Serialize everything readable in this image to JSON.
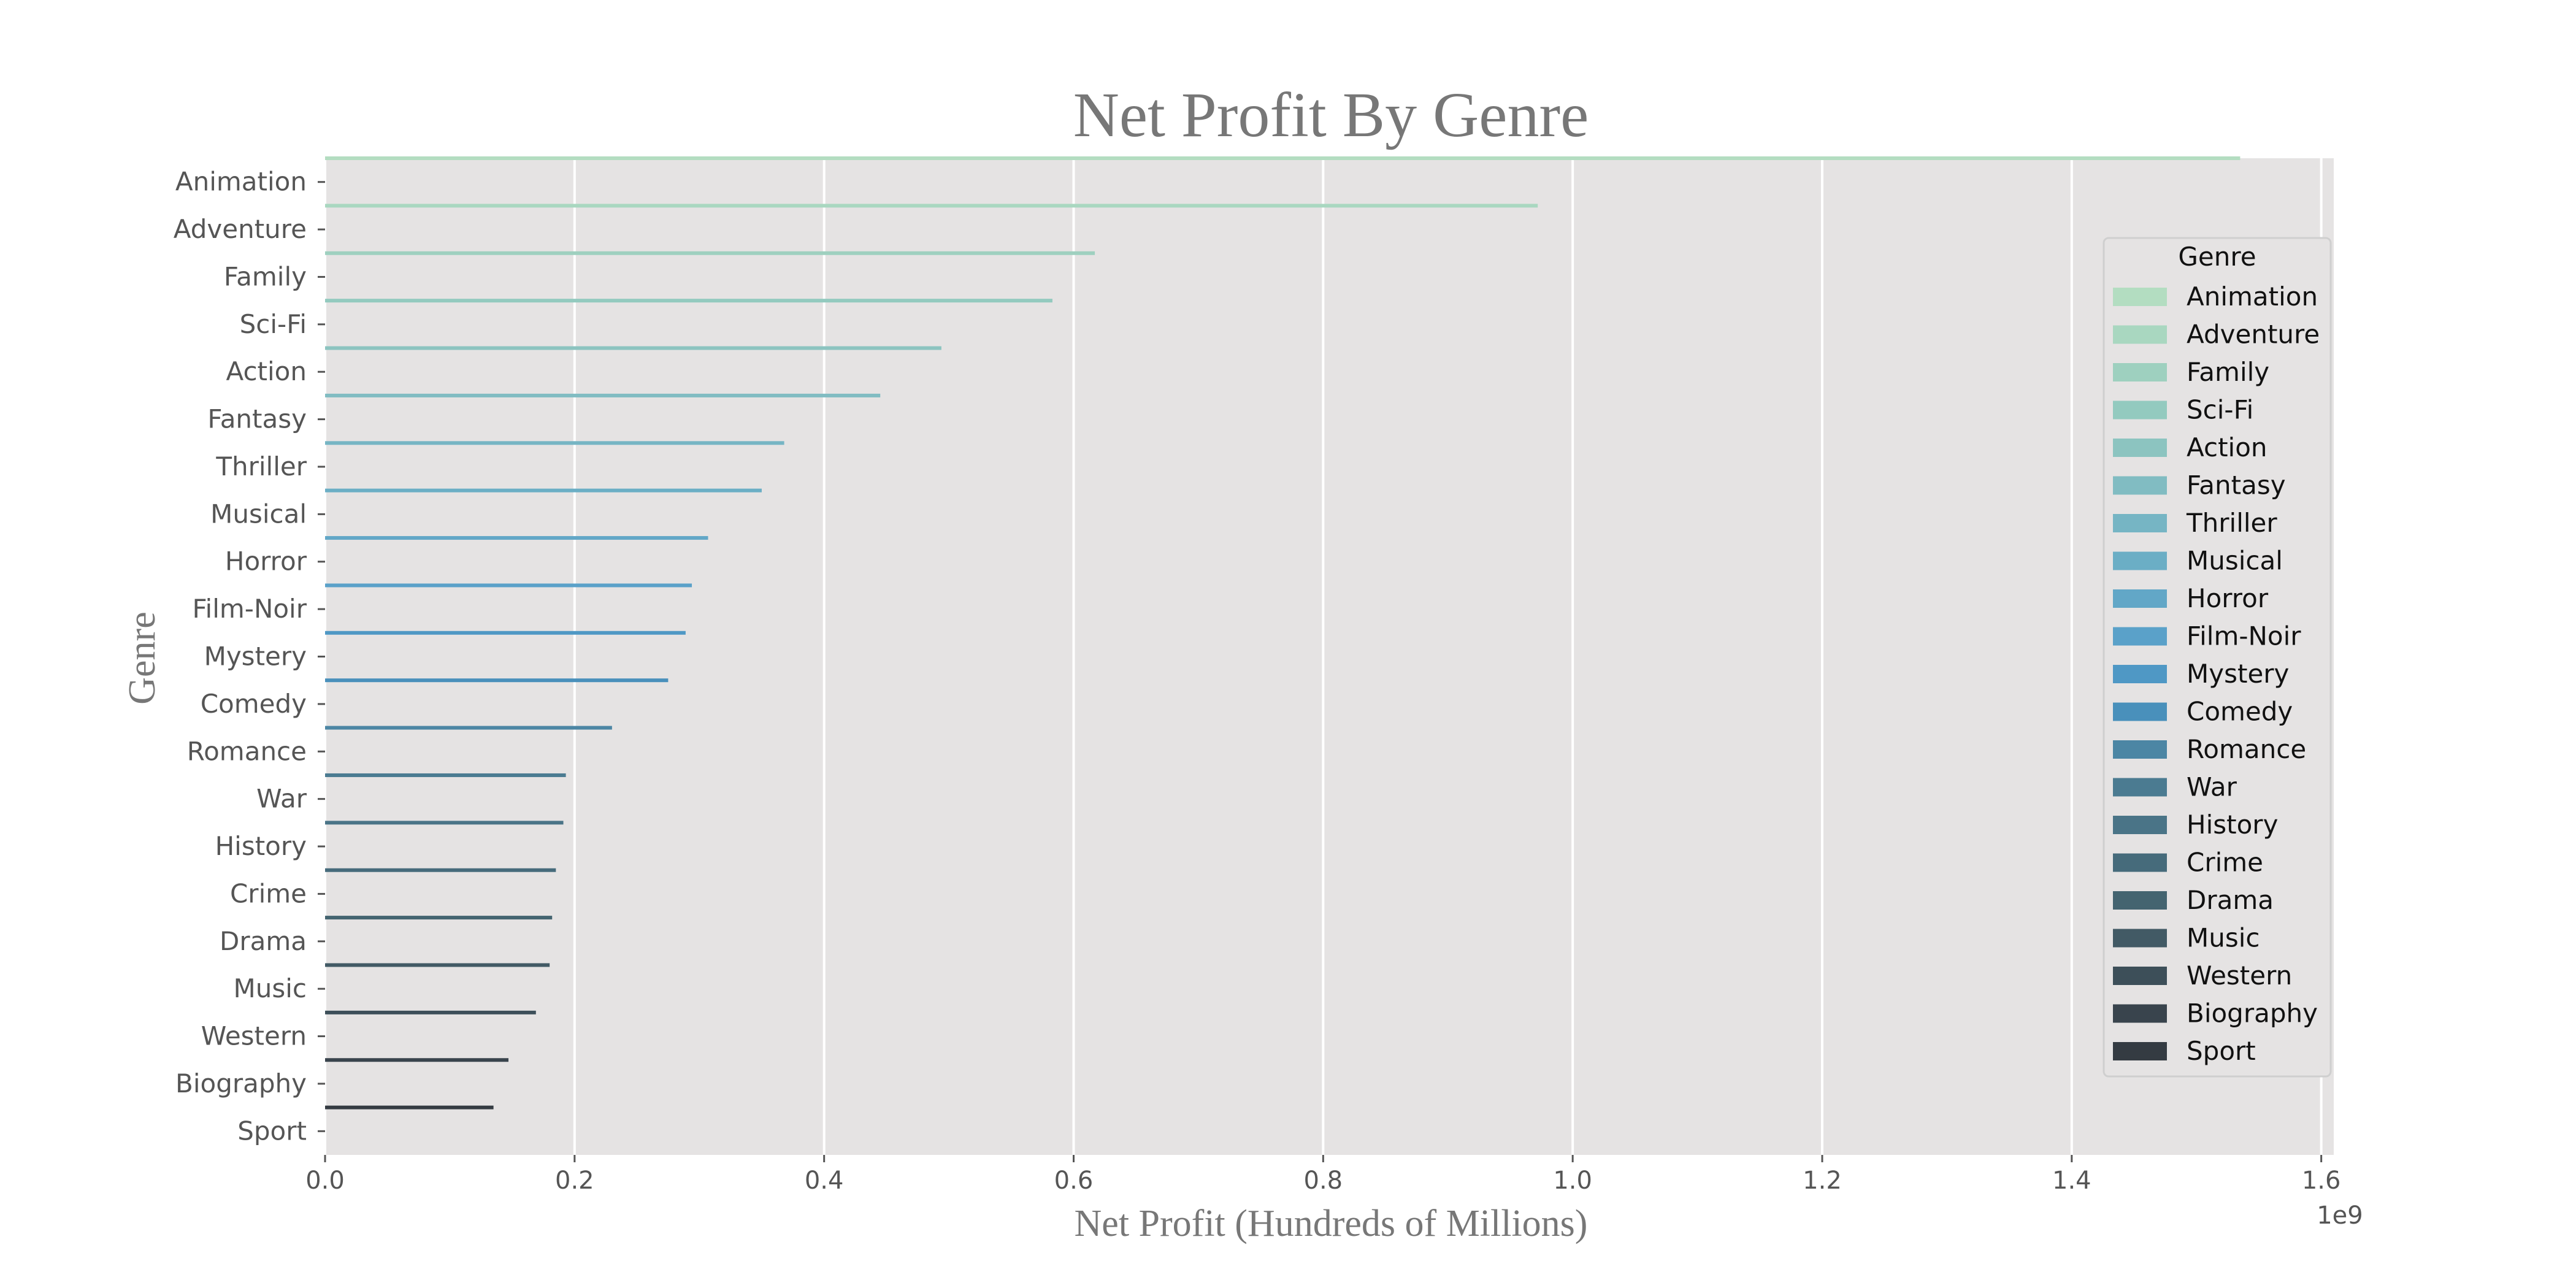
{
  "chart_data": {
    "type": "bar",
    "orientation": "horizontal",
    "title": "Net Profit By Genre",
    "xlabel": "Net Profit (Hundreds of Millions)",
    "ylabel": "Genre",
    "x_offset_label": "1e9",
    "xlim": [
      0,
      1.61
    ],
    "x_ticks": [
      "0.0",
      "0.2",
      "0.4",
      "0.6",
      "0.8",
      "1.0",
      "1.2",
      "1.4",
      "1.6"
    ],
    "grid": true,
    "legend": {
      "title": "Genre",
      "placement": "right"
    },
    "categories": [
      "Animation",
      "Adventure",
      "Family",
      "Sci-Fi",
      "Action",
      "Fantasy",
      "Thriller",
      "Musical",
      "Horror",
      "Film-Noir",
      "Mystery",
      "Comedy",
      "Romance",
      "War",
      "History",
      "Crime",
      "Drama",
      "Music",
      "Western",
      "Biography",
      "Sport"
    ],
    "values": [
      1.535,
      0.972,
      0.617,
      0.583,
      0.494,
      0.445,
      0.368,
      0.35,
      0.307,
      0.294,
      0.289,
      0.275,
      0.23,
      0.193,
      0.191,
      0.185,
      0.182,
      0.18,
      0.169,
      0.147,
      0.135
    ],
    "colors": [
      "#b3ddc1",
      "#a9d7c0",
      "#9ed0bf",
      "#93cabf",
      "#8cc4c0",
      "#81bcc2",
      "#76b5c4",
      "#6baec5",
      "#62a7c7",
      "#5aa1c9",
      "#4f98c5",
      "#4990bb",
      "#4c86a4",
      "#4b7b91",
      "#4a7487",
      "#466b7b",
      "#446470",
      "#425a65",
      "#3d4f59",
      "#39444d",
      "#343b42"
    ]
  }
}
